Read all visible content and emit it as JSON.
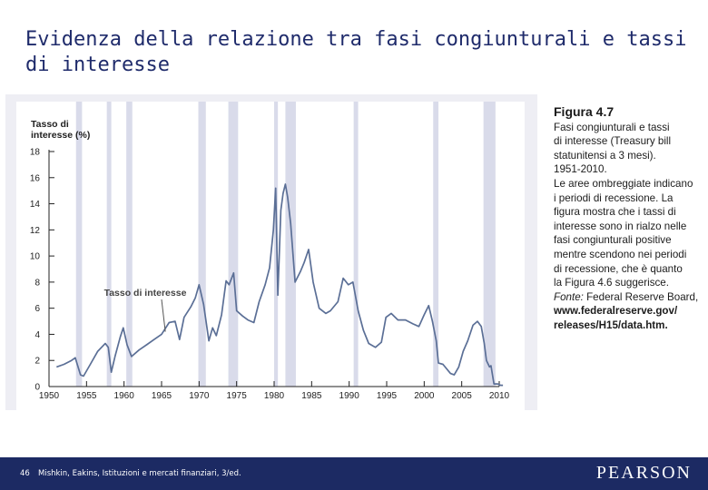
{
  "slide": {
    "title": "Evidenza della relazione tra fasi congiunturali e tassi di interesse"
  },
  "caption": {
    "figure_label": "Figura 4.7",
    "lines": [
      "Fasi congiunturali e tassi",
      "di interesse (Treasury bill",
      "statunitensi a 3 mesi).",
      "1951-2010.",
      "Le aree ombreggiate indicano",
      "i periodi di recessione. La",
      "figura mostra che i tassi di",
      "interesse sono in rialzo nelle",
      "fasi congiunturali positive",
      "mentre scendono nei periodi",
      "di recessione, che è quanto",
      "la Figura 4.6 suggerisce."
    ],
    "source_prefix": "Fonte:",
    "source_text": " Federal Reserve Board,",
    "source_url_1": "www.federalreserve.gov/",
    "source_url_2": "releases/H15/data.htm."
  },
  "footer": {
    "page_number": "46",
    "credit": "Mishkin, Eakins, Istituzioni e mercati finanziari, 3/ed.",
    "logo": "PEARSON"
  },
  "colors": {
    "accent": "#1f2b6b",
    "footer_bg": "#1c2a63",
    "recession_shade": "#d9dbea",
    "series_line": "#5b6f96"
  },
  "chart_data": {
    "type": "line",
    "title": "",
    "ylabel_lines": [
      "Tasso di",
      "interesse (%)"
    ],
    "xlabel": "",
    "xlim": [
      1950,
      2010
    ],
    "ylim": [
      0,
      18
    ],
    "yticks": [
      0,
      2,
      4,
      6,
      8,
      10,
      12,
      14,
      16,
      18
    ],
    "xticks": [
      1950,
      1955,
      1960,
      1965,
      1970,
      1975,
      1980,
      1985,
      1990,
      1995,
      2000,
      2005,
      2010
    ],
    "annotation": "Tasso di interesse",
    "annotation_target": [
      1965.5,
      4.2
    ],
    "recessions": [
      [
        1953.6,
        1954.4
      ],
      [
        1957.7,
        1958.3
      ],
      [
        1960.3,
        1961.1
      ],
      [
        1969.9,
        1970.9
      ],
      [
        1973.9,
        1975.2
      ],
      [
        1980.0,
        1980.5
      ],
      [
        1981.5,
        1982.9
      ],
      [
        1990.6,
        1991.2
      ],
      [
        2001.2,
        2001.9
      ],
      [
        2007.9,
        2009.5
      ]
    ],
    "series": [
      {
        "name": "Tasso di interesse",
        "x": [
          1951.0,
          1952.0,
          1953.0,
          1953.5,
          1954.2,
          1954.6,
          1955.5,
          1956.5,
          1957.5,
          1957.9,
          1958.3,
          1958.8,
          1959.5,
          1959.9,
          1960.4,
          1961.0,
          1962.0,
          1963.0,
          1964.0,
          1965.0,
          1966.0,
          1966.8,
          1967.4,
          1968.0,
          1968.9,
          1969.5,
          1970.0,
          1970.6,
          1971.3,
          1971.8,
          1972.3,
          1973.0,
          1973.6,
          1974.0,
          1974.6,
          1975.0,
          1975.8,
          1976.5,
          1977.3,
          1978.0,
          1978.8,
          1979.4,
          1979.9,
          1980.2,
          1980.5,
          1980.9,
          1981.2,
          1981.5,
          1981.8,
          1982.2,
          1982.8,
          1983.5,
          1984.0,
          1984.6,
          1985.2,
          1986.0,
          1986.9,
          1987.5,
          1988.5,
          1989.2,
          1989.9,
          1990.5,
          1991.2,
          1991.9,
          1992.6,
          1993.5,
          1994.3,
          1994.9,
          1995.6,
          1996.5,
          1997.5,
          1998.5,
          1999.3,
          2000.0,
          2000.6,
          2001.1,
          2001.6,
          2001.9,
          2002.5,
          2003.5,
          2004.0,
          2004.6,
          2005.2,
          2005.8,
          2006.5,
          2007.1,
          2007.6,
          2008.0,
          2008.3,
          2008.7,
          2008.9,
          2009.3,
          2009.8,
          2010.2,
          2010.5
        ],
        "y": [
          1.5,
          1.7,
          2.0,
          2.2,
          0.9,
          0.8,
          1.7,
          2.7,
          3.3,
          3.0,
          1.1,
          2.3,
          3.8,
          4.5,
          3.2,
          2.3,
          2.8,
          3.2,
          3.6,
          4.0,
          4.9,
          5.0,
          3.6,
          5.3,
          6.1,
          6.8,
          7.8,
          6.3,
          3.5,
          4.5,
          3.9,
          5.5,
          8.1,
          7.8,
          8.7,
          5.8,
          5.4,
          5.1,
          4.9,
          6.5,
          7.8,
          9.1,
          12.0,
          15.2,
          7.0,
          13.5,
          14.8,
          15.5,
          14.5,
          12.5,
          8.0,
          8.8,
          9.5,
          10.5,
          8.0,
          6.0,
          5.6,
          5.8,
          6.5,
          8.3,
          7.8,
          8.0,
          5.8,
          4.3,
          3.3,
          3.0,
          3.4,
          5.3,
          5.6,
          5.1,
          5.1,
          4.8,
          4.6,
          5.5,
          6.2,
          5.0,
          3.5,
          1.8,
          1.7,
          1.0,
          0.9,
          1.5,
          2.7,
          3.5,
          4.7,
          5.0,
          4.6,
          3.3,
          2.0,
          1.5,
          1.6,
          0.2,
          0.2,
          0.1,
          0.1
        ]
      }
    ]
  }
}
